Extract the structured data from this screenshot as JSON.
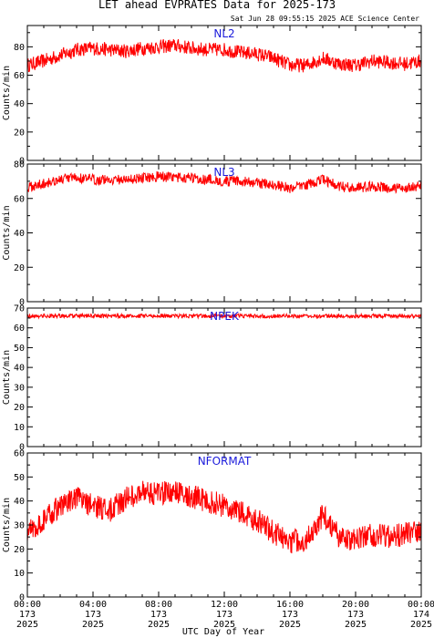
{
  "title": "LET ahead EVPRATES Data for 2025-173",
  "timestamp": "Sat Jun 28 09:55:15 2025 ACE Science Center",
  "xlabel": "UTC Day of Year",
  "colors": {
    "series": "#ff0000",
    "panel_label": "#1a1adb",
    "axes": "#000000"
  },
  "x_ticks": [
    {
      "time": "00:00",
      "day": "173",
      "year": "2025"
    },
    {
      "time": "04:00",
      "day": "173",
      "year": "2025"
    },
    {
      "time": "08:00",
      "day": "173",
      "year": "2025"
    },
    {
      "time": "12:00",
      "day": "173",
      "year": "2025"
    },
    {
      "time": "16:00",
      "day": "173",
      "year": "2025"
    },
    {
      "time": "20:00",
      "day": "173",
      "year": "2025"
    },
    {
      "time": "00:00",
      "day": "174",
      "year": "2025"
    }
  ],
  "chart_data": [
    {
      "type": "line",
      "series_label": "NL2",
      "ylabel": "Counts/min",
      "xlim_hours": [
        0,
        24
      ],
      "ylim": [
        0,
        95
      ],
      "yticks": [
        0,
        20,
        40,
        60,
        80
      ],
      "x_hours": [
        0,
        1,
        2,
        3,
        4,
        5,
        6,
        7,
        8,
        9,
        10,
        11,
        12,
        13,
        14,
        15,
        16,
        17,
        18,
        19,
        20,
        21,
        22,
        23,
        24
      ],
      "values": [
        67,
        70,
        74,
        78,
        79,
        78,
        77,
        79,
        80,
        81,
        79,
        78,
        78,
        76,
        75,
        72,
        67,
        67,
        72,
        68,
        67,
        70,
        69,
        68,
        70
      ],
      "noise": 5
    },
    {
      "type": "line",
      "series_label": "NL3",
      "ylabel": "Counts/min",
      "xlim_hours": [
        0,
        24
      ],
      "ylim": [
        0,
        80
      ],
      "yticks": [
        0,
        20,
        40,
        60,
        80
      ],
      "x_hours": [
        0,
        1,
        2,
        3,
        4,
        5,
        6,
        7,
        8,
        9,
        10,
        11,
        12,
        13,
        14,
        15,
        16,
        17,
        18,
        19,
        20,
        21,
        22,
        23,
        24
      ],
      "values": [
        66,
        69,
        71,
        72,
        71,
        71,
        71,
        72,
        73,
        72,
        72,
        71,
        70,
        70,
        69,
        68,
        66,
        68,
        71,
        67,
        66,
        67,
        66,
        66,
        67
      ],
      "noise": 3
    },
    {
      "type": "line",
      "series_label": "NPEK",
      "ylabel": "Counts/min",
      "xlim_hours": [
        0,
        24
      ],
      "ylim": [
        0,
        70
      ],
      "yticks": [
        0,
        10,
        20,
        30,
        40,
        50,
        60,
        70
      ],
      "x_hours": [
        0,
        1,
        2,
        3,
        4,
        5,
        6,
        7,
        8,
        9,
        10,
        11,
        12,
        13,
        14,
        15,
        16,
        17,
        18,
        19,
        20,
        21,
        22,
        23,
        24
      ],
      "values": [
        66,
        66,
        66,
        66,
        66,
        66,
        66,
        66,
        66,
        66,
        66,
        66,
        66,
        66,
        66,
        66,
        66,
        66,
        66,
        66,
        66,
        66,
        66,
        66,
        66
      ],
      "noise": 1
    },
    {
      "type": "line",
      "series_label": "NFORMAT",
      "ylabel": "Counts/min",
      "xlim_hours": [
        0,
        24
      ],
      "ylim": [
        0,
        60
      ],
      "yticks": [
        0,
        10,
        20,
        30,
        40,
        50,
        60
      ],
      "x_hours": [
        0,
        1,
        2,
        3,
        4,
        5,
        6,
        7,
        8,
        9,
        10,
        11,
        12,
        13,
        14,
        15,
        16,
        17,
        18,
        19,
        20,
        21,
        22,
        23,
        24
      ],
      "values": [
        27,
        32,
        38,
        41,
        38,
        36,
        41,
        44,
        43,
        44,
        42,
        40,
        38,
        35,
        32,
        27,
        23,
        24,
        34,
        25,
        24,
        26,
        25,
        26,
        28
      ],
      "noise": 5
    }
  ]
}
